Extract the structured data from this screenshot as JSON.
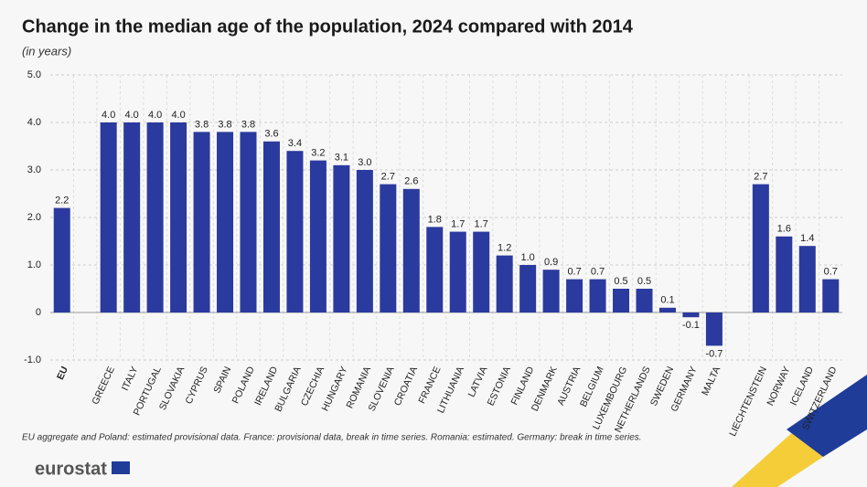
{
  "chart_data": {
    "type": "bar",
    "title": "Change in the median age of the population, 2024 compared with 2014",
    "subtitle": "(in years)",
    "categories": [
      "EU",
      null,
      "GREECE",
      "ITALY",
      "PORTUGAL",
      "SLOVAKIA",
      "CYPRUS",
      "SPAIN",
      "POLAND",
      "IRELAND",
      "BULGARIA",
      "CZECHIA",
      "HUNGARY",
      "ROMANIA",
      "SLOVENIA",
      "CROATIA",
      "FRANCE",
      "LITHUANIA",
      "LATVIA",
      "ESTONIA",
      "FINLAND",
      "DENMARK",
      "AUSTRIA",
      "BELGIUM",
      "LUXEMBOURG",
      "NETHERLANDS",
      "SWEDEN",
      "GERMANY",
      "MALTA",
      null,
      "LIECHTENSTEIN",
      "NORWAY",
      "ICELAND",
      "SWITZERLAND"
    ],
    "values": [
      2.2,
      null,
      4.0,
      4.0,
      4.0,
      4.0,
      3.8,
      3.8,
      3.8,
      3.6,
      3.4,
      3.2,
      3.1,
      3.0,
      2.7,
      2.6,
      1.8,
      1.7,
      1.7,
      1.2,
      1.0,
      0.9,
      0.7,
      0.7,
      0.5,
      0.5,
      0.1,
      -0.1,
      -0.7,
      null,
      2.7,
      1.6,
      1.4,
      0.7
    ],
    "value_labels": [
      "2.2",
      null,
      "4.0",
      "4.0",
      "4.0",
      "4.0",
      "3.8",
      "3.8",
      "3.8",
      "3.6",
      "3.4",
      "3.2",
      "3.1",
      "3.0",
      "2.7",
      "2.6",
      "1.8",
      "1.7",
      "1.7",
      "1.2",
      "1.0",
      "0.9",
      "0.7",
      "0.7",
      "0.5",
      "0.5",
      "0.1",
      "-0.1",
      "-0.7",
      null,
      "2.7",
      "1.6",
      "1.4",
      "0.7"
    ],
    "color": "#2b3a9e",
    "ylim": [
      -1,
      5
    ],
    "yticks": [
      {
        "value": 5,
        "label": "5.0"
      },
      {
        "value": 4,
        "label": "4.0"
      },
      {
        "value": 3,
        "label": "3.0"
      },
      {
        "value": 2,
        "label": "2.0"
      },
      {
        "value": 1,
        "label": "1.0"
      },
      0,
      {
        "value": -1,
        "label": "-1.0"
      }
    ],
    "grid": true,
    "footnote": "EU aggregate and Poland: estimated provisional data. France: provisional data, break in time series. Romania: estimated. Germany: break in time series.",
    "logo": "eurostat"
  }
}
